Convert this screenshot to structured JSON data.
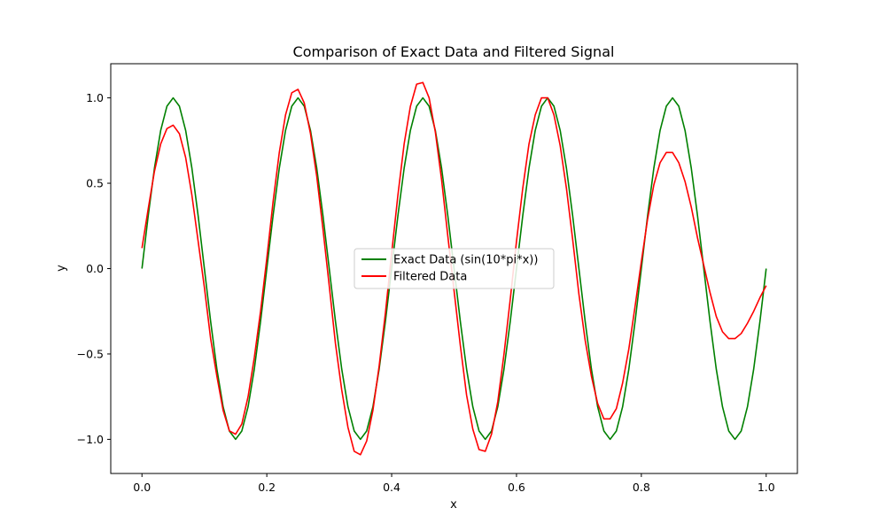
{
  "chart_data": {
    "type": "line",
    "title": "Comparison of Exact Data and Filtered Signal",
    "xlabel": "x",
    "ylabel": "y",
    "xlim": [
      -0.05,
      1.05
    ],
    "ylim": [
      -1.2,
      1.2
    ],
    "xticks": [
      0.0,
      0.2,
      0.4,
      0.6,
      0.8,
      1.0
    ],
    "xtick_labels": [
      "0.0",
      "0.2",
      "0.4",
      "0.6",
      "0.8",
      "1.0"
    ],
    "yticks": [
      -1.0,
      -0.5,
      0.0,
      0.5,
      1.0
    ],
    "ytick_labels": [
      "−1.0",
      "−0.5",
      "0.0",
      "0.5",
      "1.0"
    ],
    "grid": false,
    "legend_position": "center",
    "series": [
      {
        "name": "Exact Data (sin(10*pi*x))",
        "color": "#008000",
        "x": [
          0.0,
          0.01,
          0.02,
          0.03,
          0.04,
          0.05,
          0.06,
          0.07,
          0.08,
          0.09,
          0.1,
          0.11,
          0.12,
          0.13,
          0.14,
          0.15,
          0.16,
          0.17,
          0.18,
          0.19,
          0.2,
          0.21,
          0.22,
          0.23,
          0.24,
          0.25,
          0.26,
          0.27,
          0.28,
          0.29,
          0.3,
          0.31,
          0.32,
          0.33,
          0.34,
          0.35,
          0.36,
          0.37,
          0.38,
          0.39,
          0.4,
          0.41,
          0.42,
          0.43,
          0.44,
          0.45,
          0.46,
          0.47,
          0.48,
          0.49,
          0.5,
          0.51,
          0.52,
          0.53,
          0.54,
          0.55,
          0.56,
          0.57,
          0.58,
          0.59,
          0.6,
          0.61,
          0.62,
          0.63,
          0.64,
          0.65,
          0.66,
          0.67,
          0.68,
          0.69,
          0.7,
          0.71,
          0.72,
          0.73,
          0.74,
          0.75,
          0.76,
          0.77,
          0.78,
          0.79,
          0.8,
          0.81,
          0.82,
          0.83,
          0.84,
          0.85,
          0.86,
          0.87,
          0.88,
          0.89,
          0.9,
          0.91,
          0.92,
          0.93,
          0.94,
          0.95,
          0.96,
          0.97,
          0.98,
          0.99,
          1.0
        ],
        "y": [
          0.0,
          0.309,
          0.588,
          0.809,
          0.951,
          1.0,
          0.951,
          0.809,
          0.588,
          0.309,
          0.0,
          -0.309,
          -0.588,
          -0.809,
          -0.951,
          -1.0,
          -0.951,
          -0.809,
          -0.588,
          -0.309,
          0.0,
          0.309,
          0.588,
          0.809,
          0.951,
          1.0,
          0.951,
          0.809,
          0.588,
          0.309,
          0.0,
          -0.309,
          -0.588,
          -0.809,
          -0.951,
          -1.0,
          -0.951,
          -0.809,
          -0.588,
          -0.309,
          0.0,
          0.309,
          0.588,
          0.809,
          0.951,
          1.0,
          0.951,
          0.809,
          0.588,
          0.309,
          0.0,
          -0.309,
          -0.588,
          -0.809,
          -0.951,
          -1.0,
          -0.951,
          -0.809,
          -0.588,
          -0.309,
          0.0,
          0.309,
          0.588,
          0.809,
          0.951,
          1.0,
          0.951,
          0.809,
          0.588,
          0.309,
          0.0,
          -0.309,
          -0.588,
          -0.809,
          -0.951,
          -1.0,
          -0.951,
          -0.809,
          -0.588,
          -0.309,
          0.0,
          0.309,
          0.588,
          0.809,
          0.951,
          1.0,
          0.951,
          0.809,
          0.588,
          0.309,
          0.0,
          -0.309,
          -0.588,
          -0.809,
          -0.951,
          -1.0,
          -0.951,
          -0.809,
          -0.588,
          -0.309,
          0.0
        ]
      },
      {
        "name": "Filtered Data",
        "color": "#ff0000",
        "x": [
          0.0,
          0.01,
          0.02,
          0.03,
          0.04,
          0.05,
          0.06,
          0.07,
          0.08,
          0.09,
          0.1,
          0.11,
          0.12,
          0.13,
          0.14,
          0.15,
          0.16,
          0.17,
          0.18,
          0.19,
          0.2,
          0.21,
          0.22,
          0.23,
          0.24,
          0.25,
          0.26,
          0.27,
          0.28,
          0.29,
          0.3,
          0.31,
          0.32,
          0.33,
          0.34,
          0.35,
          0.36,
          0.37,
          0.38,
          0.39,
          0.4,
          0.41,
          0.42,
          0.43,
          0.44,
          0.45,
          0.46,
          0.47,
          0.48,
          0.49,
          0.5,
          0.51,
          0.52,
          0.53,
          0.54,
          0.55,
          0.56,
          0.57,
          0.58,
          0.59,
          0.6,
          0.61,
          0.62,
          0.63,
          0.64,
          0.65,
          0.66,
          0.67,
          0.68,
          0.69,
          0.7,
          0.71,
          0.72,
          0.73,
          0.74,
          0.75,
          0.76,
          0.77,
          0.78,
          0.79,
          0.8,
          0.81,
          0.82,
          0.83,
          0.84,
          0.85,
          0.86,
          0.87,
          0.88,
          0.89,
          0.9,
          0.91,
          0.92,
          0.93,
          0.94,
          0.95,
          0.96,
          0.97,
          0.98,
          0.99,
          1.0
        ],
        "y": [
          0.12,
          0.35,
          0.57,
          0.73,
          0.82,
          0.84,
          0.79,
          0.65,
          0.43,
          0.16,
          -0.11,
          -0.41,
          -0.63,
          -0.83,
          -0.95,
          -0.97,
          -0.91,
          -0.75,
          -0.52,
          -0.25,
          0.06,
          0.39,
          0.68,
          0.9,
          1.03,
          1.05,
          0.97,
          0.79,
          0.54,
          0.23,
          -0.1,
          -0.44,
          -0.71,
          -0.93,
          -1.07,
          -1.09,
          -1.01,
          -0.83,
          -0.57,
          -0.26,
          0.09,
          0.43,
          0.73,
          0.95,
          1.08,
          1.09,
          1.0,
          0.8,
          0.52,
          0.19,
          -0.13,
          -0.45,
          -0.74,
          -0.94,
          -1.06,
          -1.07,
          -0.97,
          -0.78,
          -0.5,
          -0.18,
          0.16,
          0.47,
          0.73,
          0.9,
          1.0,
          1.0,
          0.9,
          0.72,
          0.47,
          0.17,
          -0.15,
          -0.42,
          -0.63,
          -0.79,
          -0.88,
          -0.88,
          -0.82,
          -0.67,
          -0.47,
          -0.22,
          0.04,
          0.29,
          0.49,
          0.62,
          0.68,
          0.68,
          0.62,
          0.51,
          0.36,
          0.18,
          0.02,
          -0.14,
          -0.28,
          -0.37,
          -0.41,
          -0.41,
          -0.38,
          -0.32,
          -0.25,
          -0.17,
          -0.1
        ]
      }
    ]
  }
}
